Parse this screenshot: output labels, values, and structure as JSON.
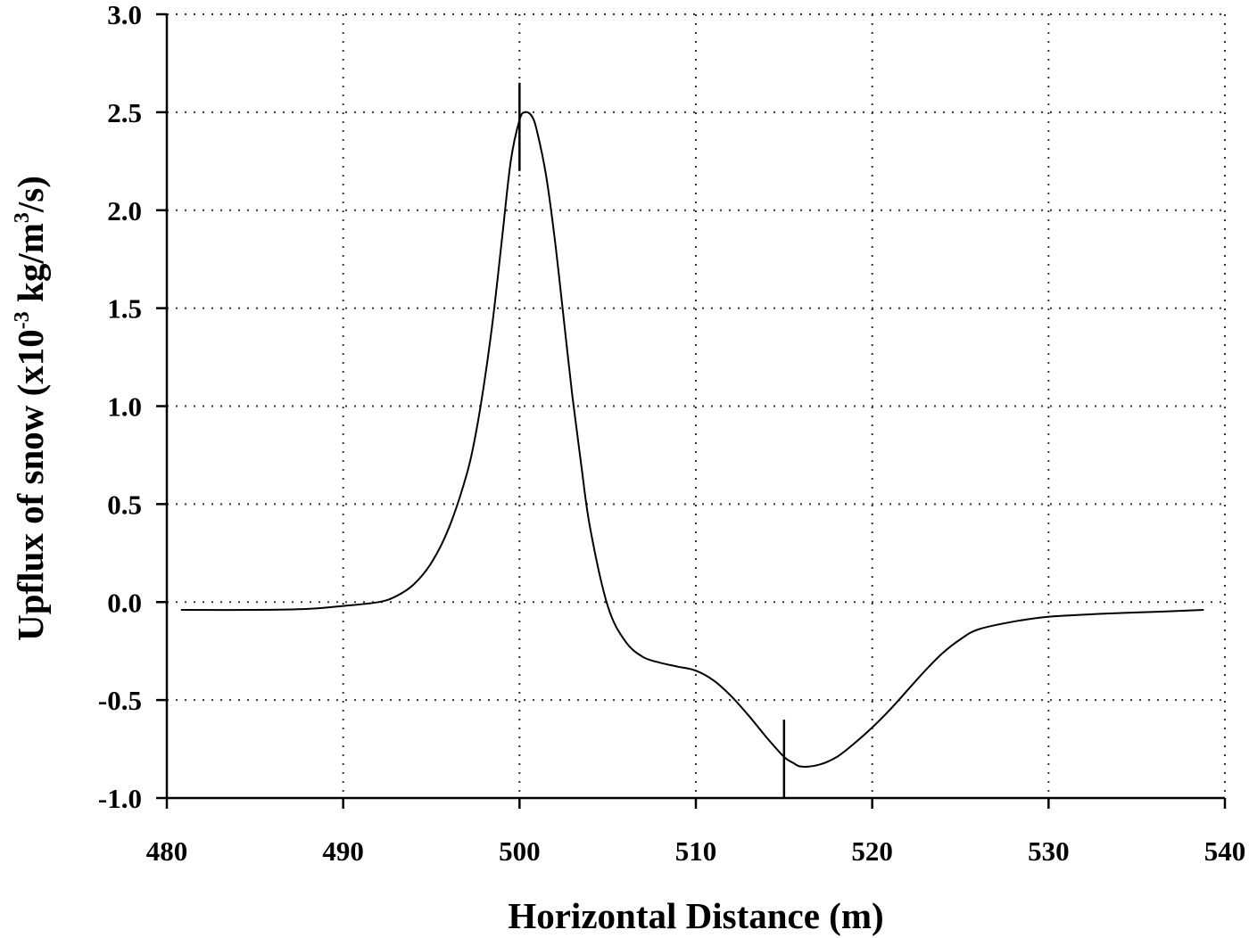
{
  "chart_data": {
    "type": "line",
    "xlabel": "Horizontal Distance (m)",
    "ylabel_main": "Upflux of snow (x10",
    "ylabel_exp1": "-3",
    "ylabel_mid": " kg/m",
    "ylabel_exp2": "3",
    "ylabel_end": "/s)",
    "xlim": [
      480,
      540
    ],
    "ylim": [
      -1.0,
      3.0
    ],
    "xticks": [
      480,
      490,
      500,
      510,
      520,
      530,
      540
    ],
    "xtick_labels": [
      "480",
      "490",
      "500",
      "510",
      "520",
      "530",
      "540"
    ],
    "yticks": [
      -1.0,
      -0.5,
      0.0,
      0.5,
      1.0,
      1.5,
      2.0,
      2.5,
      3.0
    ],
    "ytick_labels": [
      "-1.0",
      "-0.5",
      "0.0",
      "0.5",
      "1.0",
      "1.5",
      "2.0",
      "2.5",
      "3.0"
    ],
    "grid": true,
    "series": [
      {
        "x": [
          480.8,
          485,
          488,
          490,
          492,
          493,
          494,
          495,
          496,
          497,
          497.5,
          498,
          498.5,
          499,
          499.5,
          500,
          500.3,
          500.7,
          501,
          501.5,
          502,
          502.5,
          503,
          503.5,
          504,
          505,
          506,
          507,
          508,
          509,
          510,
          511,
          512,
          513,
          514,
          515,
          515.5,
          516,
          517,
          518,
          519,
          520,
          521,
          522,
          523,
          524,
          525,
          526,
          528,
          530,
          533,
          536,
          538.8
        ],
        "y": [
          -0.04,
          -0.04,
          -0.035,
          -0.02,
          0.0,
          0.03,
          0.09,
          0.2,
          0.38,
          0.65,
          0.85,
          1.12,
          1.45,
          1.85,
          2.25,
          2.46,
          2.5,
          2.48,
          2.4,
          2.18,
          1.85,
          1.45,
          1.05,
          0.7,
          0.38,
          -0.02,
          -0.2,
          -0.28,
          -0.31,
          -0.33,
          -0.35,
          -0.4,
          -0.48,
          -0.58,
          -0.69,
          -0.79,
          -0.82,
          -0.84,
          -0.83,
          -0.79,
          -0.72,
          -0.64,
          -0.55,
          -0.45,
          -0.35,
          -0.26,
          -0.19,
          -0.14,
          -0.1,
          -0.075,
          -0.06,
          -0.05,
          -0.04
        ]
      }
    ],
    "markers": [
      {
        "x": 500.0,
        "y_from": 2.2,
        "y_to": 2.65
      },
      {
        "x": 515.0,
        "y_from": -1.0,
        "y_to": -0.6
      }
    ]
  }
}
